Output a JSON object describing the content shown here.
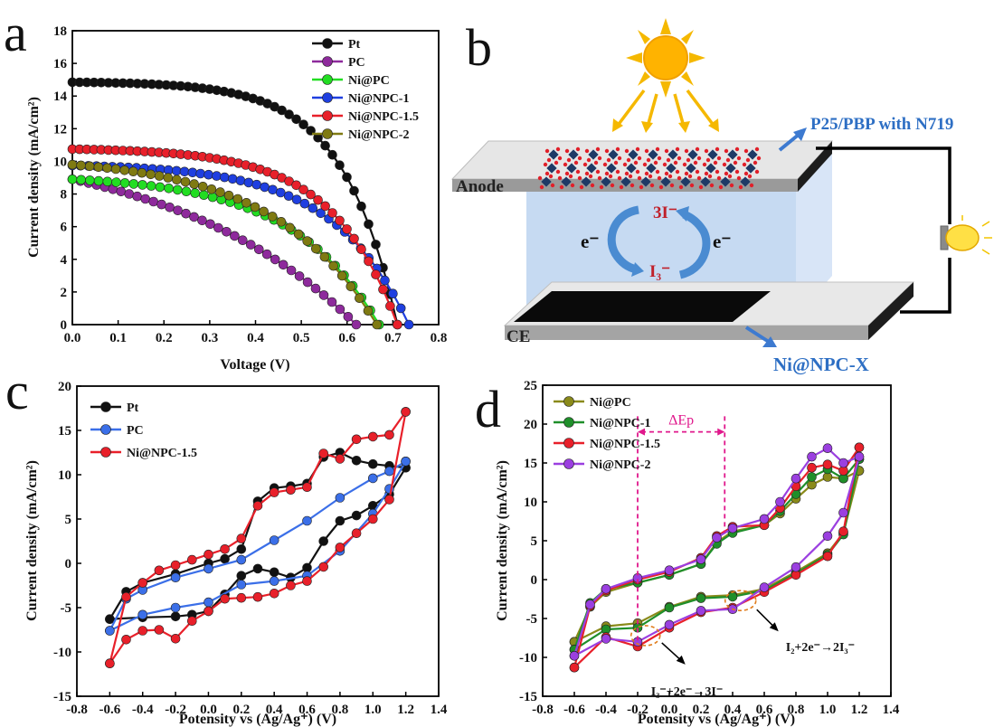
{
  "panels": {
    "a": "a",
    "b": "b",
    "c": "c",
    "d": "d"
  },
  "colors": {
    "Pt": "#111111",
    "PC": "#8e2a9c",
    "Ni@PC": "#22dd22",
    "Ni@NPC-1": "#1f3fe0",
    "Ni@NPC-1.5": "#e8202a",
    "Ni@NPC-2": "#7f7a12",
    "PC_c": "#3b6fe8",
    "Ni@PC_d": "#8a8a1a",
    "Ni@NPC-1_d": "#1f8f2a",
    "Ni@NPC-2_d": "#9b3fe0",
    "annot": "#e0188c"
  },
  "chart_data": [
    {
      "panel": "a",
      "type": "line",
      "xlabel": "Voltage (V)",
      "ylabel": "Current density (mA/cm²)",
      "xlim": [
        0.0,
        0.8
      ],
      "ylim": [
        0,
        18
      ],
      "xticks": [
        "0.0",
        "0.1",
        "0.2",
        "0.3",
        "0.4",
        "0.5",
        "0.6",
        "0.7",
        "0.8"
      ],
      "yticks": [
        "0",
        "2",
        "4",
        "6",
        "8",
        "10",
        "12",
        "14",
        "16",
        "18"
      ],
      "legend_position": "top-right",
      "series": [
        {
          "name": "Pt",
          "jsc": 14.85,
          "voc": 0.71,
          "n": 45,
          "shape": 6
        },
        {
          "name": "PC",
          "jsc": 8.9,
          "voc": 0.62,
          "n": 35,
          "shape": 1.5
        },
        {
          "name": "Ni@PC",
          "jsc": 8.9,
          "voc": 0.67,
          "n": 35,
          "shape": 3.5
        },
        {
          "name": "Ni@NPC-1",
          "jsc": 9.75,
          "voc": 0.735,
          "n": 42,
          "shape": 4.5
        },
        {
          "name": "Ni@NPC-1.5",
          "jsc": 10.75,
          "voc": 0.71,
          "n": 45,
          "shape": 5
        },
        {
          "name": "Ni@NPC-2",
          "jsc": 9.8,
          "voc": 0.665,
          "n": 35,
          "shape": 3
        }
      ]
    },
    {
      "panel": "c",
      "type": "line",
      "xlabel": "Potensity vs (Ag/Ag⁺) (V)",
      "ylabel": "Current density (mA/cm²)",
      "xlim": [
        -0.8,
        1.4
      ],
      "ylim": [
        -15,
        20
      ],
      "xticks": [
        "-0.8",
        "-0.6",
        "-0.4",
        "-0.2",
        "0.0",
        "0.2",
        "0.4",
        "0.6",
        "0.8",
        "1.0",
        "1.2",
        "1.4"
      ],
      "yticks": [
        "-15",
        "-10",
        "-5",
        "0",
        "5",
        "10",
        "15",
        "20"
      ],
      "legend_position": "top-left",
      "series": [
        {
          "name": "Pt",
          "forward": [
            [
              -0.6,
              -6.3
            ],
            [
              -0.5,
              -3.2
            ],
            [
              -0.4,
              -2.2
            ],
            [
              -0.2,
              -1.2
            ],
            [
              0.0,
              0.0
            ],
            [
              0.1,
              0.5
            ],
            [
              0.2,
              1.6
            ],
            [
              0.3,
              7.0
            ],
            [
              0.4,
              8.5
            ],
            [
              0.5,
              8.7
            ],
            [
              0.6,
              9.0
            ],
            [
              0.7,
              12.0
            ],
            [
              0.8,
              12.5
            ],
            [
              0.9,
              11.6
            ],
            [
              1.0,
              11.2
            ],
            [
              1.1,
              11.0
            ],
            [
              1.2,
              10.8
            ]
          ],
          "reverse": [
            [
              1.2,
              10.8
            ],
            [
              1.1,
              7.8
            ],
            [
              1.0,
              6.5
            ],
            [
              0.9,
              5.4
            ],
            [
              0.8,
              4.8
            ],
            [
              0.7,
              2.5
            ],
            [
              0.6,
              -0.5
            ],
            [
              0.5,
              -1.6
            ],
            [
              0.4,
              -1.0
            ],
            [
              0.3,
              -0.6
            ],
            [
              0.2,
              -1.4
            ],
            [
              0.1,
              -3.5
            ],
            [
              0.0,
              -5.4
            ],
            [
              -0.1,
              -5.8
            ],
            [
              -0.2,
              -6.0
            ],
            [
              -0.4,
              -6.1
            ],
            [
              -0.6,
              -6.3
            ]
          ]
        },
        {
          "name": "PC",
          "forward": [
            [
              -0.6,
              -7.6
            ],
            [
              -0.5,
              -4.0
            ],
            [
              -0.4,
              -3.0
            ],
            [
              -0.2,
              -1.6
            ],
            [
              0.0,
              -0.6
            ],
            [
              0.2,
              0.4
            ],
            [
              0.4,
              2.6
            ],
            [
              0.6,
              4.8
            ],
            [
              0.8,
              7.4
            ],
            [
              1.0,
              9.6
            ],
            [
              1.1,
              10.4
            ],
            [
              1.2,
              11.5
            ]
          ],
          "reverse": [
            [
              1.2,
              11.5
            ],
            [
              1.1,
              8.4
            ],
            [
              1.0,
              5.6
            ],
            [
              0.8,
              1.4
            ],
            [
              0.6,
              -1.4
            ],
            [
              0.4,
              -2.0
            ],
            [
              0.2,
              -2.4
            ],
            [
              0.0,
              -4.4
            ],
            [
              -0.2,
              -5.0
            ],
            [
              -0.4,
              -5.8
            ],
            [
              -0.6,
              -7.6
            ]
          ]
        },
        {
          "name": "Ni@NPC-1.5",
          "forward": [
            [
              -0.6,
              -11.3
            ],
            [
              -0.5,
              -3.8
            ],
            [
              -0.4,
              -2.2
            ],
            [
              -0.3,
              -0.8
            ],
            [
              -0.2,
              -0.2
            ],
            [
              -0.1,
              0.4
            ],
            [
              0.0,
              1.0
            ],
            [
              0.1,
              1.6
            ],
            [
              0.2,
              2.8
            ],
            [
              0.3,
              6.5
            ],
            [
              0.4,
              8.0
            ],
            [
              0.5,
              8.3
            ],
            [
              0.6,
              8.6
            ],
            [
              0.7,
              12.4
            ],
            [
              0.8,
              11.8
            ],
            [
              0.9,
              14.0
            ],
            [
              1.0,
              14.3
            ],
            [
              1.1,
              14.5
            ],
            [
              1.2,
              17.1
            ]
          ],
          "reverse": [
            [
              1.2,
              17.1
            ],
            [
              1.1,
              7.2
            ],
            [
              1.0,
              5.0
            ],
            [
              0.9,
              3.4
            ],
            [
              0.8,
              1.8
            ],
            [
              0.7,
              -0.4
            ],
            [
              0.6,
              -2.0
            ],
            [
              0.5,
              -2.5
            ],
            [
              0.4,
              -3.4
            ],
            [
              0.3,
              -3.8
            ],
            [
              0.2,
              -3.9
            ],
            [
              0.1,
              -4.0
            ],
            [
              0.0,
              -5.4
            ],
            [
              -0.1,
              -6.5
            ],
            [
              -0.2,
              -8.5
            ],
            [
              -0.3,
              -7.5
            ],
            [
              -0.4,
              -7.6
            ],
            [
              -0.5,
              -8.6
            ],
            [
              -0.6,
              -11.3
            ]
          ]
        }
      ]
    },
    {
      "panel": "d",
      "type": "line",
      "xlabel": "Potensity vs (Ag/Ag⁺) (V)",
      "ylabel": "Current density (mA/cm²)",
      "xlim": [
        -0.8,
        1.4
      ],
      "ylim": [
        -15,
        25
      ],
      "xticks": [
        "-0.8",
        "-0.6",
        "-0.4",
        "-0.2",
        "0.0",
        "0.2",
        "0.4",
        "0.6",
        "0.8",
        "1.0",
        "1.2",
        "1.4"
      ],
      "yticks": [
        "-15",
        "-10",
        "-5",
        "0",
        "5",
        "10",
        "15",
        "20",
        "25"
      ],
      "legend_position": "top-left",
      "annotations": {
        "delta": "ΔEp",
        "delta_x": [
          -0.2,
          0.35
        ],
        "delta_y": 19,
        "ox": "I₃⁻+2e⁻→3I⁻",
        "red": "I₂+2e⁻→2I₃⁻"
      },
      "series": [
        {
          "name": "Ni@PC",
          "forward": [
            [
              -0.6,
              -8.0
            ],
            [
              -0.5,
              -3.5
            ],
            [
              -0.4,
              -1.6
            ],
            [
              -0.2,
              -0.4
            ],
            [
              0.0,
              0.6
            ],
            [
              0.2,
              2.0
            ],
            [
              0.3,
              4.8
            ],
            [
              0.4,
              6.2
            ],
            [
              0.6,
              7.0
            ],
            [
              0.7,
              8.5
            ],
            [
              0.8,
              10.4
            ],
            [
              0.9,
              12.2
            ],
            [
              1.0,
              13.2
            ],
            [
              1.1,
              13.0
            ],
            [
              1.2,
              14.0
            ]
          ],
          "reverse": [
            [
              1.2,
              14.0
            ],
            [
              1.1,
              6.0
            ],
            [
              1.0,
              3.4
            ],
            [
              0.8,
              1.0
            ],
            [
              0.6,
              -1.2
            ],
            [
              0.4,
              -2.0
            ],
            [
              0.2,
              -2.2
            ],
            [
              0.0,
              -3.5
            ],
            [
              -0.2,
              -5.6
            ],
            [
              -0.4,
              -6.0
            ],
            [
              -0.6,
              -8.0
            ]
          ]
        },
        {
          "name": "Ni@NPC-1",
          "forward": [
            [
              -0.6,
              -9.0
            ],
            [
              -0.5,
              -3.0
            ],
            [
              -0.4,
              -1.2
            ],
            [
              -0.2,
              -0.4
            ],
            [
              0.0,
              0.6
            ],
            [
              0.2,
              2.0
            ],
            [
              0.3,
              4.6
            ],
            [
              0.4,
              6.0
            ],
            [
              0.6,
              7.0
            ],
            [
              0.7,
              8.8
            ],
            [
              0.8,
              11.0
            ],
            [
              0.9,
              13.2
            ],
            [
              1.0,
              14.2
            ],
            [
              1.1,
              13.0
            ],
            [
              1.2,
              15.5
            ]
          ],
          "reverse": [
            [
              1.2,
              15.5
            ],
            [
              1.1,
              5.8
            ],
            [
              1.0,
              3.2
            ],
            [
              0.8,
              0.8
            ],
            [
              0.6,
              -1.4
            ],
            [
              0.4,
              -2.2
            ],
            [
              0.2,
              -2.4
            ],
            [
              0.0,
              -3.6
            ],
            [
              -0.2,
              -6.2
            ],
            [
              -0.4,
              -6.4
            ],
            [
              -0.6,
              -9.0
            ]
          ]
        },
        {
          "name": "Ni@NPC-1.5",
          "forward": [
            [
              -0.6,
              -11.3
            ],
            [
              -0.5,
              -3.4
            ],
            [
              -0.4,
              -1.4
            ],
            [
              -0.2,
              0.0
            ],
            [
              0.0,
              1.0
            ],
            [
              0.2,
              2.8
            ],
            [
              0.3,
              5.6
            ],
            [
              0.4,
              6.8
            ],
            [
              0.6,
              7.0
            ],
            [
              0.7,
              9.2
            ],
            [
              0.8,
              12.0
            ],
            [
              0.9,
              14.4
            ],
            [
              1.0,
              14.8
            ],
            [
              1.1,
              14.0
            ],
            [
              1.2,
              17.0
            ]
          ],
          "reverse": [
            [
              1.2,
              17.0
            ],
            [
              1.1,
              6.2
            ],
            [
              1.0,
              3.0
            ],
            [
              0.8,
              0.6
            ],
            [
              0.6,
              -1.6
            ],
            [
              0.4,
              -3.6
            ],
            [
              0.2,
              -4.2
            ],
            [
              0.0,
              -6.2
            ],
            [
              -0.2,
              -8.6
            ],
            [
              -0.4,
              -7.4
            ],
            [
              -0.6,
              -11.3
            ]
          ]
        },
        {
          "name": "Ni@NPC-2",
          "forward": [
            [
              -0.6,
              -9.8
            ],
            [
              -0.5,
              -3.2
            ],
            [
              -0.4,
              -1.2
            ],
            [
              -0.2,
              0.2
            ],
            [
              0.0,
              1.2
            ],
            [
              0.2,
              2.6
            ],
            [
              0.3,
              5.4
            ],
            [
              0.4,
              6.6
            ],
            [
              0.6,
              7.8
            ],
            [
              0.7,
              10.0
            ],
            [
              0.8,
              13.0
            ],
            [
              0.9,
              15.8
            ],
            [
              1.0,
              16.9
            ],
            [
              1.1,
              15.0
            ],
            [
              1.2,
              15.8
            ]
          ],
          "reverse": [
            [
              1.2,
              15.8
            ],
            [
              1.1,
              8.6
            ],
            [
              1.0,
              5.6
            ],
            [
              0.8,
              1.6
            ],
            [
              0.6,
              -1.0
            ],
            [
              0.4,
              -3.8
            ],
            [
              0.2,
              -4.0
            ],
            [
              0.0,
              -5.8
            ],
            [
              -0.2,
              -8.0
            ],
            [
              -0.4,
              -7.6
            ],
            [
              -0.6,
              -9.8
            ]
          ]
        }
      ]
    }
  ],
  "schematic": {
    "anode": "Anode",
    "ce": "CE",
    "photoanode": "P25/PBP with N719",
    "counter": "Ni@NPC-X",
    "ox": "3I⁻",
    "red": "I₃⁻",
    "e_left": "e⁻",
    "e_right": "e⁻"
  }
}
